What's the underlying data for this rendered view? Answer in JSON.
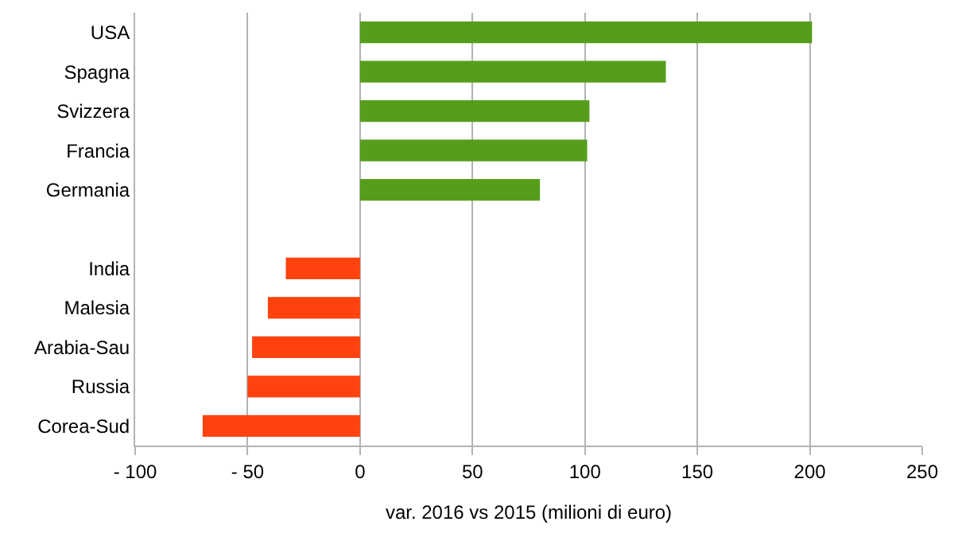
{
  "chart_data": {
    "type": "bar",
    "orientation": "horizontal",
    "categories": [
      "USA",
      "Spagna",
      "Svizzera",
      "Francia",
      "Germania",
      null,
      "India",
      "Malesia",
      "Arabia-Sau",
      "Russia",
      "Corea-Sud"
    ],
    "values": [
      201,
      136,
      102,
      101,
      80,
      null,
      -33,
      -41,
      -48,
      -50,
      -70
    ],
    "colors": [
      "#579d1c",
      "#579d1c",
      "#579d1c",
      "#579d1c",
      "#579d1c",
      "#579d1c",
      "#ff420e",
      "#ff420e",
      "#ff420e",
      "#ff420e",
      "#ff420e"
    ],
    "xlim": [
      -100,
      250
    ],
    "xticks": [
      {
        "value": -100,
        "label": "- 100"
      },
      {
        "value": -50,
        "label": "- 50"
      },
      0,
      50,
      100,
      150,
      200,
      250
    ],
    "xlabel": "var. 2016 vs 2015 (milioni di euro)",
    "grid": "x",
    "legend": false
  }
}
